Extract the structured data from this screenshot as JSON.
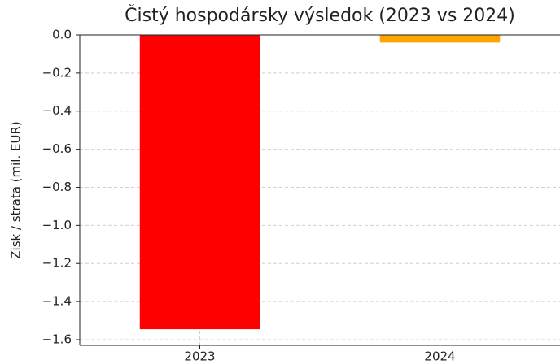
{
  "chart_data": {
    "type": "bar",
    "title": "Čistý hospodársky výsledok (2023 vs 2024)",
    "ylabel": "Zisk / strata (mil. EUR)",
    "categories": [
      "2023",
      "2024"
    ],
    "values": [
      -1.545,
      -0.04
    ],
    "colors": [
      "#ff0000",
      "#ffa500"
    ],
    "ylim": [
      -1.63,
      0.0
    ],
    "yticks": [
      {
        "value": 0.0,
        "label": "0.0"
      },
      {
        "value": -0.2,
        "label": "−0.2"
      },
      {
        "value": -0.4,
        "label": "−0.4"
      },
      {
        "value": -0.6,
        "label": "−0.6"
      },
      {
        "value": -0.8,
        "label": "−0.8"
      },
      {
        "value": -1.0,
        "label": "−1.0"
      },
      {
        "value": -1.2,
        "label": "−1.2"
      },
      {
        "value": -1.4,
        "label": "−1.4"
      },
      {
        "value": -1.6,
        "label": "−1.6"
      }
    ],
    "grid": true
  }
}
